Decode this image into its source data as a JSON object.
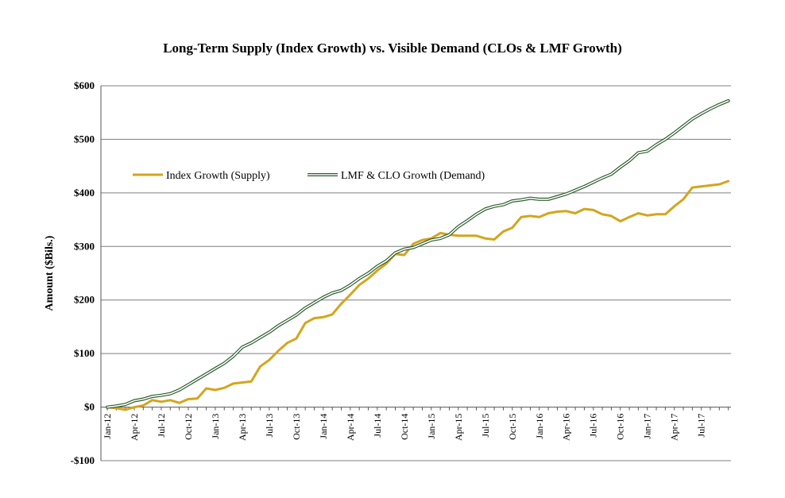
{
  "chart_data": {
    "type": "line",
    "title": "Long-Term Supply (Index Growth) vs. Visible Demand (CLOs & LMF Growth)",
    "xlabel": "",
    "ylabel": "Amount ($Bils.)",
    "ylim": [
      -100,
      600
    ],
    "yticks": [
      -100,
      0,
      100,
      200,
      300,
      400,
      500,
      600
    ],
    "ytick_labels": [
      "-$100",
      "$0",
      "$100",
      "$200",
      "$300",
      "$400",
      "$500",
      "$600"
    ],
    "grid": true,
    "legend_position": "upper-left",
    "x": [
      "Jan-12",
      "Feb-12",
      "Mar-12",
      "Apr-12",
      "May-12",
      "Jun-12",
      "Jul-12",
      "Aug-12",
      "Sep-12",
      "Oct-12",
      "Nov-12",
      "Dec-12",
      "Jan-13",
      "Feb-13",
      "Mar-13",
      "Apr-13",
      "May-13",
      "Jun-13",
      "Jul-13",
      "Aug-13",
      "Sep-13",
      "Oct-13",
      "Nov-13",
      "Dec-13",
      "Jan-14",
      "Feb-14",
      "Mar-14",
      "Apr-14",
      "May-14",
      "Jun-14",
      "Jul-14",
      "Aug-14",
      "Sep-14",
      "Oct-14",
      "Nov-14",
      "Dec-14",
      "Jan-15",
      "Feb-15",
      "Mar-15",
      "Apr-15",
      "May-15",
      "Jun-15",
      "Jul-15",
      "Aug-15",
      "Sep-15",
      "Oct-15",
      "Nov-15",
      "Dec-15",
      "Jan-16",
      "Feb-16",
      "Mar-16",
      "Apr-16",
      "May-16",
      "Jun-16",
      "Jul-16",
      "Aug-16",
      "Sep-16",
      "Oct-16",
      "Nov-16",
      "Dec-16",
      "Jan-17",
      "Feb-17",
      "Mar-17",
      "Apr-17",
      "May-17",
      "Jun-17",
      "Jul-17",
      "Aug-17",
      "Sep-17",
      "Oct-17"
    ],
    "x_tick_labels": [
      "Jan-12",
      "Apr-12",
      "Jul-12",
      "Oct-12",
      "Jan-13",
      "Apr-13",
      "Jul-13",
      "Oct-13",
      "Jan-14",
      "Apr-14",
      "Jul-14",
      "Oct-14",
      "Jan-15",
      "Apr-15",
      "Jul-15",
      "Oct-15",
      "Jan-16",
      "Apr-16",
      "Jul-16",
      "Oct-16",
      "Jan-17",
      "Apr-17",
      "Jul-17"
    ],
    "series": [
      {
        "name": "Index Growth (Supply)",
        "color": "#D4A51C",
        "values": [
          0,
          -2,
          -5,
          0,
          3,
          13,
          10,
          13,
          8,
          15,
          16,
          35,
          32,
          36,
          44,
          46,
          48,
          76,
          88,
          105,
          120,
          128,
          157,
          166,
          168,
          173,
          193,
          210,
          228,
          240,
          255,
          268,
          286,
          284,
          305,
          312,
          315,
          325,
          322,
          320,
          320,
          320,
          315,
          313,
          328,
          335,
          355,
          357,
          355,
          362,
          365,
          366,
          362,
          370,
          368,
          360,
          357,
          347,
          355,
          362,
          358,
          360,
          360,
          375,
          388,
          410,
          412,
          414,
          416,
          422
        ]
      },
      {
        "name": "LMF & CLO Growth (Demand)",
        "color": "#2E5E2E",
        "values": [
          0,
          2,
          5,
          12,
          15,
          20,
          22,
          25,
          32,
          42,
          52,
          62,
          72,
          82,
          95,
          112,
          120,
          130,
          140,
          152,
          162,
          172,
          185,
          195,
          205,
          213,
          218,
          228,
          240,
          250,
          263,
          273,
          288,
          295,
          298,
          305,
          312,
          315,
          322,
          337,
          348,
          360,
          370,
          375,
          378,
          385,
          387,
          390,
          388,
          388,
          393,
          398,
          405,
          412,
          420,
          428,
          435,
          448,
          460,
          475,
          478,
          490,
          500,
          512,
          525,
          538,
          548,
          557,
          565,
          572
        ]
      }
    ]
  }
}
